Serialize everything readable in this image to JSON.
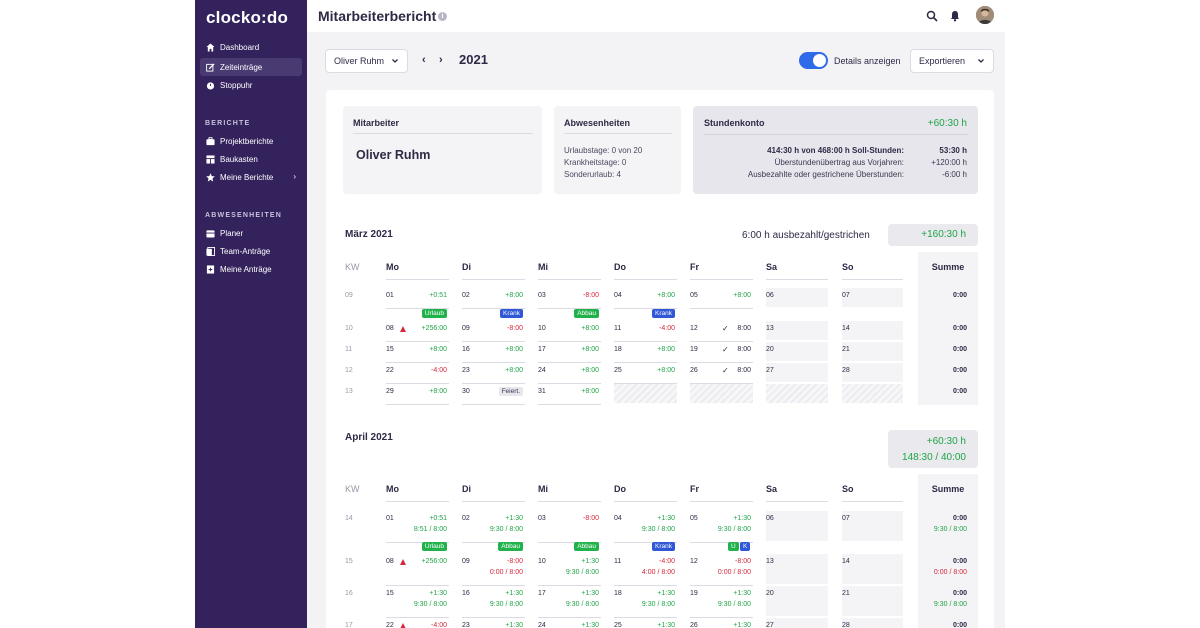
{
  "app": {
    "logo": "clocko:do"
  },
  "sidebar": {
    "items": [
      {
        "label": "Dashboard",
        "icon": "home-icon"
      },
      {
        "label": "Zeiteinträge",
        "icon": "edit-icon",
        "active": true
      },
      {
        "label": "Stoppuhr",
        "icon": "stopwatch-icon"
      }
    ],
    "section_reports": "BERICHTE",
    "report_items": [
      {
        "label": "Projektberichte",
        "icon": "briefcase-icon"
      },
      {
        "label": "Baukasten",
        "icon": "blocks-icon"
      },
      {
        "label": "Meine Berichte",
        "icon": "star-icon"
      }
    ],
    "section_absences": "ABWESENHEITEN",
    "absence_items": [
      {
        "label": "Planer",
        "icon": "calendar-icon"
      },
      {
        "label": "Team-Anträge",
        "icon": "team-request-icon"
      },
      {
        "label": "Meine Anträge",
        "icon": "my-request-icon"
      }
    ]
  },
  "header": {
    "title": "Mitarbeiterbericht"
  },
  "toolbar": {
    "employee": "Oliver Ruhm",
    "year": "2021",
    "details_label": "Details anzeigen",
    "details_on": true,
    "export_label": "Exportieren"
  },
  "summary": {
    "employee_header": "Mitarbeiter",
    "employee_name": "Oliver Ruhm",
    "absences_header": "Abwesenheiten",
    "absences": [
      "Urlaubstage: 0 von 20",
      "Krankheitstage: 0",
      "Sonderurlaub: 4"
    ],
    "account_header": "Stundenkonto",
    "account_total": "+60:30 h",
    "account_rows": [
      {
        "label": "414:30 h von 468:00 h Soll-Stunden:",
        "value": "53:30 h"
      },
      {
        "label": "Überstundenübertrag aus Vorjahren:",
        "value": "+120:00 h"
      },
      {
        "label": "Ausbezahlte oder gestrichene Überstunden:",
        "value": "-6:00 h"
      }
    ]
  },
  "columns": [
    "KW",
    "Mo",
    "Di",
    "Mi",
    "Do",
    "Fr",
    "Sa",
    "So",
    "Summe"
  ],
  "march": {
    "title": "März 2021",
    "paid_out": "6:00 h ausbezahlt/gestrichen",
    "balance": "+160:30 h",
    "weeks": [
      {
        "kw": "09",
        "sum": "0:00",
        "days": [
          {
            "d": "01",
            "v": "+0:51",
            "c": "green"
          },
          {
            "d": "02",
            "v": "+8:00",
            "c": "green"
          },
          {
            "d": "03",
            "v": "-8:00",
            "c": "red"
          },
          {
            "d": "04",
            "v": "+8:00",
            "c": "green"
          },
          {
            "d": "05",
            "v": "+8:00",
            "c": "green"
          },
          {
            "d": "06"
          },
          {
            "d": "07"
          }
        ]
      },
      {
        "kw": "10",
        "sum": "0:00",
        "days": [
          {
            "d": "08",
            "v": "+256:00",
            "c": "green",
            "badge": "Urlaub",
            "bc": "green",
            "warn": true
          },
          {
            "d": "09",
            "v": "-8:00",
            "c": "red",
            "badge": "Krank",
            "bc": "blue"
          },
          {
            "d": "10",
            "v": "+8:00",
            "c": "green",
            "badge": "Abbau",
            "bc": "green"
          },
          {
            "d": "11",
            "v": "-4:00",
            "c": "red",
            "badge": "Krank",
            "bc": "blue"
          },
          {
            "d": "12",
            "v": "8:00",
            "c": "dark",
            "check": true
          },
          {
            "d": "13"
          },
          {
            "d": "14"
          }
        ]
      },
      {
        "kw": "11",
        "sum": "0:00",
        "days": [
          {
            "d": "15",
            "v": "+8:00",
            "c": "green"
          },
          {
            "d": "16",
            "v": "+8:00",
            "c": "green"
          },
          {
            "d": "17",
            "v": "+8:00",
            "c": "green"
          },
          {
            "d": "18",
            "v": "+8:00",
            "c": "green"
          },
          {
            "d": "19",
            "v": "8:00",
            "c": "dark",
            "check": true
          },
          {
            "d": "20"
          },
          {
            "d": "21"
          }
        ]
      },
      {
        "kw": "12",
        "sum": "0:00",
        "days": [
          {
            "d": "22",
            "v": "-4:00",
            "c": "red"
          },
          {
            "d": "23",
            "v": "+8:00",
            "c": "green"
          },
          {
            "d": "24",
            "v": "+8:00",
            "c": "green"
          },
          {
            "d": "25",
            "v": "+8:00",
            "c": "green"
          },
          {
            "d": "26",
            "v": "8:00",
            "c": "dark",
            "check": true
          },
          {
            "d": "27"
          },
          {
            "d": "28"
          }
        ]
      },
      {
        "kw": "13",
        "sum": "0:00",
        "days": [
          {
            "d": "29",
            "v": "+8:00",
            "c": "green"
          },
          {
            "d": "30",
            "badge": "Feiert.",
            "bc": "grey"
          },
          {
            "d": "31",
            "v": "+8:00",
            "c": "green"
          },
          {
            "hatch": true
          },
          {
            "hatch": true
          },
          {
            "hatch": true
          },
          {
            "hatch": true
          }
        ]
      }
    ]
  },
  "april": {
    "title": "April 2021",
    "balance": "+60:30 h",
    "balance2": "148:30 / 40:00",
    "weeks": [
      {
        "kw": "14",
        "sum": "0:00",
        "sum2": "9:30 / 8:00",
        "s2c": "green",
        "days": [
          {
            "d": "01",
            "v": "+0:51",
            "c": "green",
            "v2": "8:51 / 8:00",
            "c2": "green"
          },
          {
            "d": "02",
            "v": "+1:30",
            "c": "green",
            "v2": "9:30 / 8:00",
            "c2": "green"
          },
          {
            "d": "03",
            "v": "-8:00",
            "c": "red"
          },
          {
            "d": "04",
            "v": "+1:30",
            "c": "green",
            "v2": "9:30 / 8:00",
            "c2": "green"
          },
          {
            "d": "05",
            "v": "+1:30",
            "c": "green",
            "v2": "9:30 / 8:00",
            "c2": "green"
          },
          {
            "d": "06"
          },
          {
            "d": "07"
          }
        ]
      },
      {
        "kw": "15",
        "sum": "0:00",
        "sum2": "0:00 / 8:00",
        "s2c": "red",
        "days": [
          {
            "d": "08",
            "v": "+256:00",
            "c": "green",
            "badge": "Urlaub",
            "bc": "green",
            "warn": true
          },
          {
            "d": "09",
            "v": "-8:00",
            "c": "red",
            "v2": "0:00 / 8:00",
            "c2": "red",
            "badge": "Abbau",
            "bc": "green"
          },
          {
            "d": "10",
            "v": "+1:30",
            "c": "green",
            "v2": "9:30 / 8:00",
            "c2": "green",
            "badge": "Abbau",
            "bc": "green"
          },
          {
            "d": "11",
            "v": "-4:00",
            "c": "red",
            "v2": "4:00 / 8:00",
            "c2": "red",
            "badge": "Krank",
            "bc": "blue"
          },
          {
            "d": "12",
            "v": "-8:00",
            "c": "red",
            "v2": "0:00 / 8:00",
            "c2": "red",
            "uk": true
          },
          {
            "d": "13"
          },
          {
            "d": "14"
          }
        ]
      },
      {
        "kw": "16",
        "sum": "0:00",
        "sum2": "9:30 / 8:00",
        "s2c": "green",
        "days": [
          {
            "d": "15",
            "v": "+1:30",
            "c": "green",
            "v2": "9:30 / 8:00",
            "c2": "green"
          },
          {
            "d": "16",
            "v": "+1:30",
            "c": "green",
            "v2": "9:30 / 8:00",
            "c2": "green"
          },
          {
            "d": "17",
            "v": "+1:30",
            "c": "green",
            "v2": "9:30 / 8:00",
            "c2": "green"
          },
          {
            "d": "18",
            "v": "+1:30",
            "c": "green",
            "v2": "9:30 / 8:00",
            "c2": "green"
          },
          {
            "d": "19",
            "v": "+1:30",
            "c": "green",
            "v2": "9:30 / 8:00",
            "c2": "green"
          },
          {
            "d": "20"
          },
          {
            "d": "21"
          }
        ]
      },
      {
        "kw": "17",
        "sum": "0:00",
        "days": [
          {
            "d": "22",
            "v": "-4:00",
            "c": "red",
            "warn": true
          },
          {
            "d": "23",
            "v": "+1:30",
            "c": "green"
          },
          {
            "d": "24",
            "v": "+1:30",
            "c": "green"
          },
          {
            "d": "25",
            "v": "+1:30",
            "c": "green"
          },
          {
            "d": "26",
            "v": "+1:30",
            "c": "green"
          },
          {
            "d": "27"
          },
          {
            "d": "28"
          }
        ]
      }
    ]
  },
  "badge_u": "U",
  "badge_k": "K"
}
